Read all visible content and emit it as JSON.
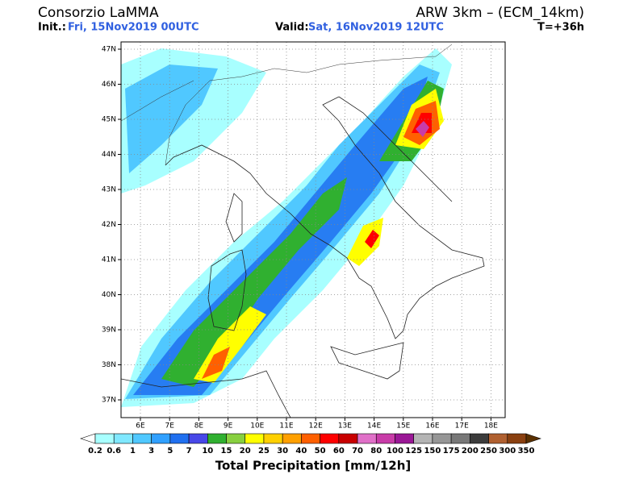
{
  "header": {
    "title": "Consorzio LaMMA",
    "model": "ARW 3km – (ECM_14km)",
    "init_label": "Init.:",
    "init_value": "Fri, 15Nov2019 00UTC",
    "valid_label": "Valid:",
    "valid_value": "Sat, 16Nov2019 12UTC",
    "lead_time": "T=+36h"
  },
  "map": {
    "lat_labels": [
      "47N",
      "46N",
      "45N",
      "44N",
      "43N",
      "42N",
      "41N",
      "40N",
      "39N",
      "38N",
      "37N"
    ],
    "lon_labels": [
      "6E",
      "7E",
      "8E",
      "9E",
      "10E",
      "11E",
      "12E",
      "13E",
      "14E",
      "15E",
      "16E",
      "17E",
      "18E"
    ]
  },
  "colorbar": {
    "labels": [
      0.2,
      0.6,
      1,
      3,
      5,
      7,
      10,
      15,
      20,
      25,
      30,
      40,
      50,
      60,
      70,
      80,
      100,
      125,
      150,
      175,
      200,
      250,
      300,
      350
    ],
    "colors": [
      "#ffffff",
      "#a8ffff",
      "#80e8ff",
      "#50c8ff",
      "#30a0ff",
      "#2070f0",
      "#4848e8",
      "#30b030",
      "#88d040",
      "#ffff00",
      "#ffd000",
      "#ffa000",
      "#ff6000",
      "#ff0000",
      "#c80000",
      "#e070c8",
      "#c83ca8",
      "#9a1896",
      "#b4b4b4",
      "#969696",
      "#787878",
      "#3c3c3c",
      "#b06030",
      "#8a4010",
      "#5a3000"
    ],
    "title": "Total Precipitation [mm/12h]"
  }
}
